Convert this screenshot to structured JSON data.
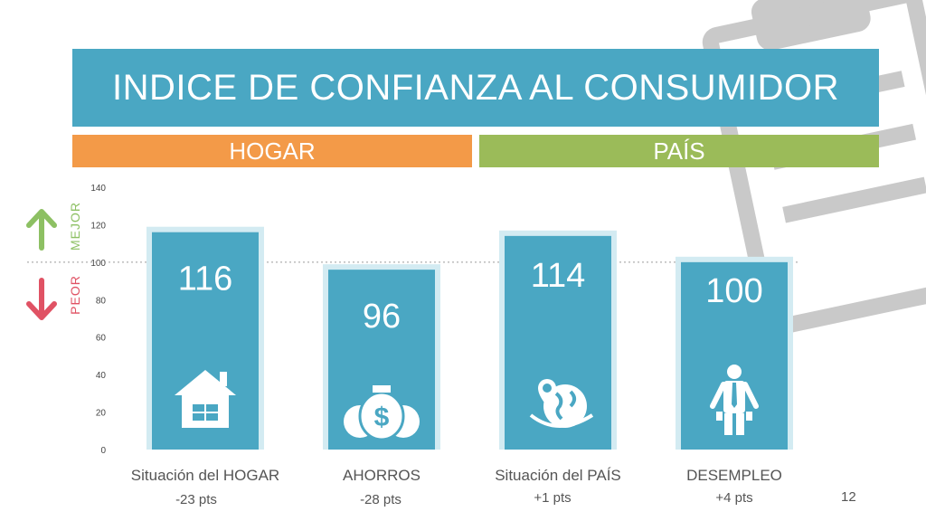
{
  "title": "INDICE DE CONFIANZA AL CONSUMIDOR",
  "groups": [
    {
      "label": "HOGAR",
      "color": "#f39a48"
    },
    {
      "label": "PAÍS",
      "color": "#9bbb59"
    }
  ],
  "indicators": {
    "better_label": "MEJOR",
    "worse_label": "PEOR",
    "better_color": "#8dc063",
    "worse_color": "#e05264"
  },
  "colors": {
    "bar": "#4aa7c3",
    "bar_halo": "#d3ebf2",
    "title_bg": "#4aa7c3"
  },
  "chart_data": {
    "type": "bar",
    "title": "INDICE DE CONFIANZA AL CONSUMIDOR",
    "categories": [
      "Situación del HOGAR",
      "AHORROS",
      "Situación del PAÍS",
      "DESEMPLEO"
    ],
    "values": [
      116,
      96,
      114,
      100
    ],
    "value_labels": [
      "116",
      "96",
      "114",
      "100"
    ],
    "changes": [
      "-23 pts",
      "-28 pts",
      "+1 pts",
      "+4  pts"
    ],
    "icons": [
      "house-icon",
      "money-bag-icon",
      "globe-icon",
      "unemployed-person-icon"
    ],
    "groups": [
      "HOGAR",
      "HOGAR",
      "PAÍS",
      "PAÍS"
    ],
    "ylim": [
      0,
      140
    ],
    "yticks": [
      0,
      20,
      40,
      60,
      80,
      100,
      120,
      140
    ],
    "reference_line": 100,
    "grid": false,
    "xlabel": "",
    "ylabel": ""
  },
  "page_number": "12"
}
